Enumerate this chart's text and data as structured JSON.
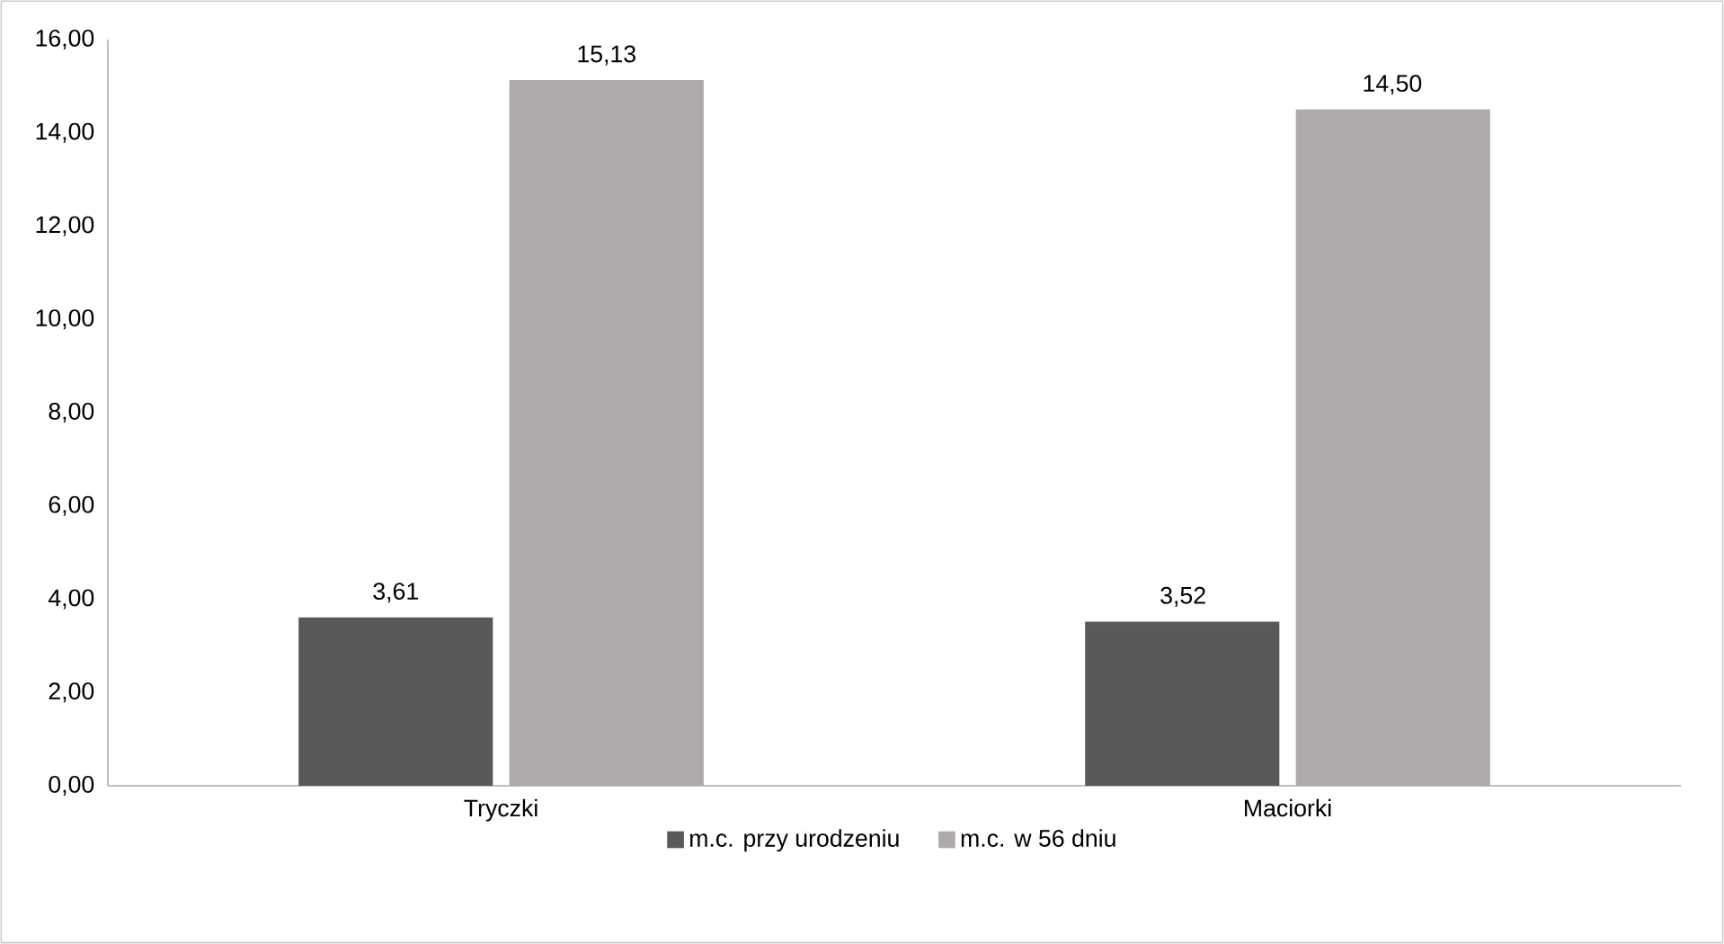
{
  "chart_data": {
    "type": "bar",
    "categories": [
      "Tryczki",
      "Maciorki"
    ],
    "series": [
      {
        "name": "m.c. przy urodzeniu",
        "color": "#595959",
        "values": [
          3.61,
          3.52
        ],
        "value_labels": [
          "3,61",
          "3,52"
        ]
      },
      {
        "name": "m.c. w 56 dniu",
        "color": "#aeaaaa",
        "values": [
          15.13,
          14.5
        ],
        "value_labels": [
          "15,13",
          "14,50"
        ]
      }
    ],
    "ylim": [
      0,
      16
    ],
    "yticks": [
      {
        "value": 0,
        "label": "0,00"
      },
      {
        "value": 2,
        "label": "2,00"
      },
      {
        "value": 4,
        "label": "4,00"
      },
      {
        "value": 6,
        "label": "6,00"
      },
      {
        "value": 8,
        "label": "8,00"
      },
      {
        "value": 10,
        "label": "10,00"
      },
      {
        "value": 12,
        "label": "12,00"
      },
      {
        "value": 14,
        "label": "14,00"
      },
      {
        "value": 16,
        "label": "16,00"
      }
    ],
    "grid": false,
    "legend": "bottom"
  }
}
